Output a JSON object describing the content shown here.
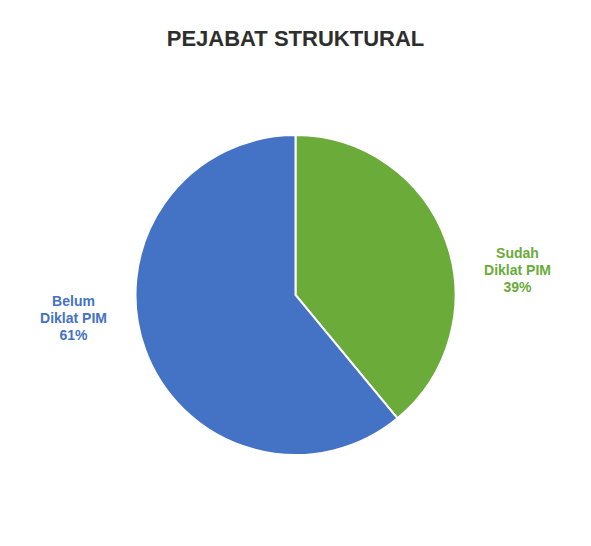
{
  "chart_data": {
    "type": "pie",
    "title": "PEJABAT STRUKTURAL",
    "categories": [
      "Sudah\nDiklat PIM",
      "Belum\nDiklat PIM"
    ],
    "values": [
      39,
      61
    ],
    "value_labels": [
      "39%",
      "61%"
    ],
    "colors": [
      "#6AAB3A",
      "#4472C4"
    ],
    "data_labels": true
  }
}
